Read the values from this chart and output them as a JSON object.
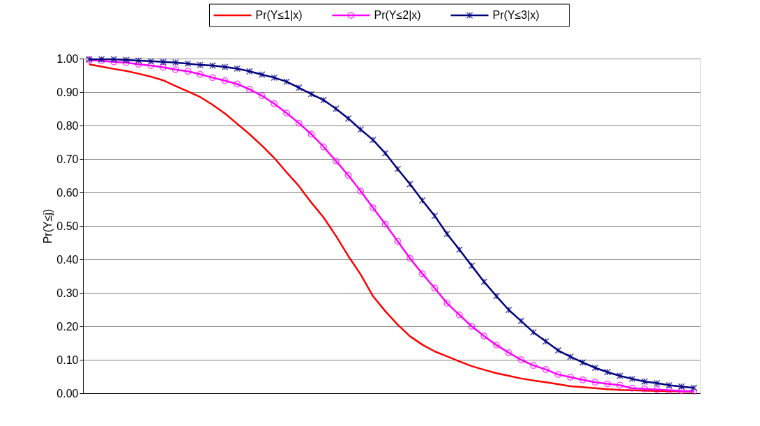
{
  "chart_data": {
    "type": "line",
    "ylabel": "Pr(Y≤j)",
    "categories": [
      null,
      null,
      null,
      null,
      null,
      null,
      null,
      null,
      null,
      null,
      null,
      null,
      null,
      null,
      null,
      null,
      null,
      null,
      null,
      null,
      null,
      null,
      null,
      null,
      null,
      null,
      null,
      null,
      null,
      null,
      null,
      null,
      null,
      null,
      null,
      null,
      null,
      null,
      null,
      null,
      null,
      null,
      null,
      null,
      null,
      null,
      null,
      null,
      null,
      null
    ],
    "series": [
      {
        "name": "Pr(Y≤1|x)",
        "color": "#ff0000",
        "marker": "none",
        "values": [
          0.983,
          0.976,
          0.969,
          0.963,
          0.955,
          0.946,
          0.935,
          0.918,
          0.902,
          0.885,
          0.862,
          0.836,
          0.805,
          0.774,
          0.74,
          0.703,
          0.66,
          0.619,
          0.57,
          0.525,
          0.47,
          0.41,
          0.355,
          0.29,
          0.245,
          0.205,
          0.17,
          0.145,
          0.125,
          0.11,
          0.095,
          0.081,
          0.07,
          0.06,
          0.052,
          0.044,
          0.038,
          0.033,
          0.027,
          0.021,
          0.018,
          0.015,
          0.012,
          0.01,
          0.009,
          0.008,
          0.007,
          0.006,
          0.005,
          0.004
        ]
      },
      {
        "name": "Pr(Y≤2|x)",
        "color": "#ff00ff",
        "marker": "circle",
        "values": [
          0.996,
          0.993,
          0.99,
          0.988,
          0.983,
          0.979,
          0.974,
          0.967,
          0.962,
          0.953,
          0.943,
          0.934,
          0.924,
          0.908,
          0.889,
          0.865,
          0.837,
          0.807,
          0.774,
          0.736,
          0.694,
          0.651,
          0.604,
          0.554,
          0.505,
          0.454,
          0.403,
          0.357,
          0.314,
          0.269,
          0.234,
          0.2,
          0.171,
          0.144,
          0.121,
          0.1,
          0.083,
          0.071,
          0.056,
          0.048,
          0.04,
          0.033,
          0.028,
          0.024,
          0.015,
          0.013,
          0.011,
          0.009,
          0.007,
          0.006
        ]
      },
      {
        "name": "Pr(Y≤3|x)",
        "color": "#000080",
        "marker": "cross",
        "values": [
          0.998,
          0.998,
          0.998,
          0.996,
          0.994,
          0.992,
          0.99,
          0.988,
          0.985,
          0.981,
          0.979,
          0.975,
          0.97,
          0.962,
          0.952,
          0.943,
          0.931,
          0.913,
          0.894,
          0.876,
          0.85,
          0.821,
          0.788,
          0.757,
          0.717,
          0.67,
          0.625,
          0.576,
          0.53,
          0.476,
          0.429,
          0.381,
          0.333,
          0.29,
          0.249,
          0.216,
          0.182,
          0.155,
          0.128,
          0.109,
          0.092,
          0.076,
          0.063,
          0.052,
          0.043,
          0.035,
          0.03,
          0.024,
          0.02,
          0.016
        ]
      }
    ],
    "ylim": [
      0,
      1
    ],
    "yticks": [
      {
        "value": 0,
        "label": "0.00"
      },
      {
        "value": 0.1,
        "label": "0.10"
      },
      {
        "value": 0.2,
        "label": "0.20"
      },
      {
        "value": 0.3,
        "label": "0.30"
      },
      {
        "value": 0.4,
        "label": "0.40"
      },
      {
        "value": 0.5,
        "label": "0.50"
      },
      {
        "value": 0.6,
        "label": "0.60"
      },
      {
        "value": 0.7,
        "label": "0.70"
      },
      {
        "value": 0.8,
        "label": "0.80"
      },
      {
        "value": 0.9,
        "label": "0.90"
      },
      {
        "value": 1,
        "label": "1.00"
      }
    ],
    "grid": "y",
    "legend": "top",
    "tick_labels": "y"
  }
}
